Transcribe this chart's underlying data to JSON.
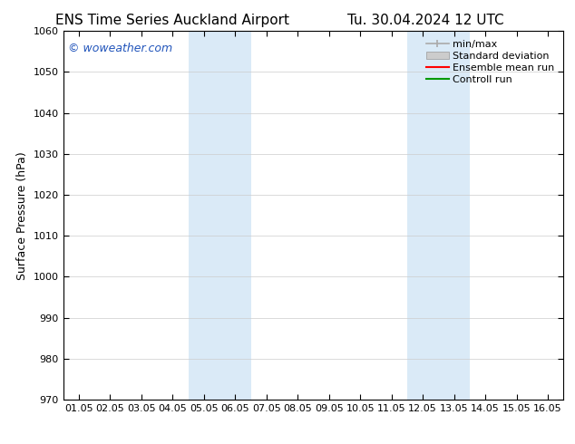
{
  "title_left": "ENS Time Series Auckland Airport",
  "title_right": "Tu. 30.04.2024 12 UTC",
  "ylabel": "Surface Pressure (hPa)",
  "xlim": [
    -0.5,
    15.5
  ],
  "ylim": [
    970,
    1060
  ],
  "yticks": [
    970,
    980,
    990,
    1000,
    1010,
    1020,
    1030,
    1040,
    1050,
    1060
  ],
  "xtick_labels": [
    "01.05",
    "02.05",
    "03.05",
    "04.05",
    "05.05",
    "06.05",
    "07.05",
    "08.05",
    "09.05",
    "10.05",
    "11.05",
    "12.05",
    "13.05",
    "14.05",
    "15.05",
    "16.05"
  ],
  "xtick_positions": [
    0,
    1,
    2,
    3,
    4,
    5,
    6,
    7,
    8,
    9,
    10,
    11,
    12,
    13,
    14,
    15
  ],
  "bg_color": "#ffffff",
  "plot_bg_color": "#ffffff",
  "shaded_regions": [
    {
      "xmin": 3.5,
      "xmax": 5.5,
      "color": "#daeaf7"
    },
    {
      "xmin": 10.5,
      "xmax": 12.5,
      "color": "#daeaf7"
    }
  ],
  "watermark_text": "© woweather.com",
  "watermark_color": "#2255bb",
  "legend_labels": [
    "min/max",
    "Standard deviation",
    "Ensemble mean run",
    "Controll run"
  ],
  "legend_colors": [
    "#aaaaaa",
    "#cccccc",
    "#ff0000",
    "#009900"
  ],
  "title_fontsize": 11,
  "axis_label_fontsize": 9,
  "tick_fontsize": 8,
  "legend_fontsize": 8
}
